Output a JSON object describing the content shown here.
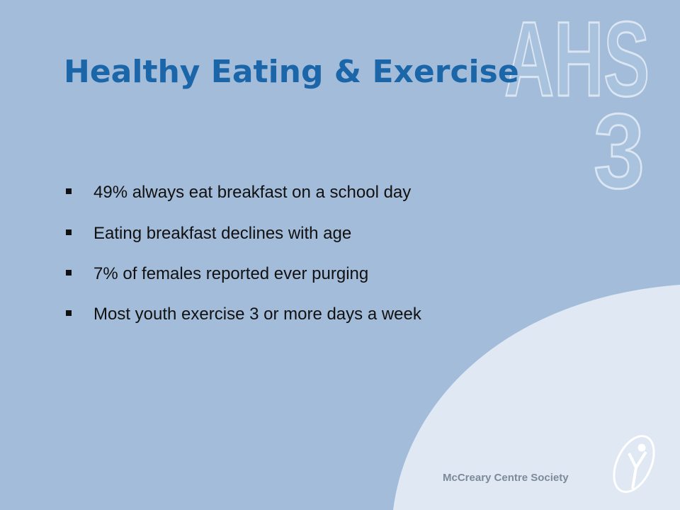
{
  "slide": {
    "title": "Healthy Eating & Exercise",
    "bullets": [
      "49% always eat breakfast on a school day",
      "Eating breakfast declines with age",
      "7% of females reported ever purging",
      "Most youth exercise 3 or more days a week"
    ],
    "watermark": [
      "AHS",
      "3"
    ],
    "footer": "McCreary Centre Society"
  }
}
